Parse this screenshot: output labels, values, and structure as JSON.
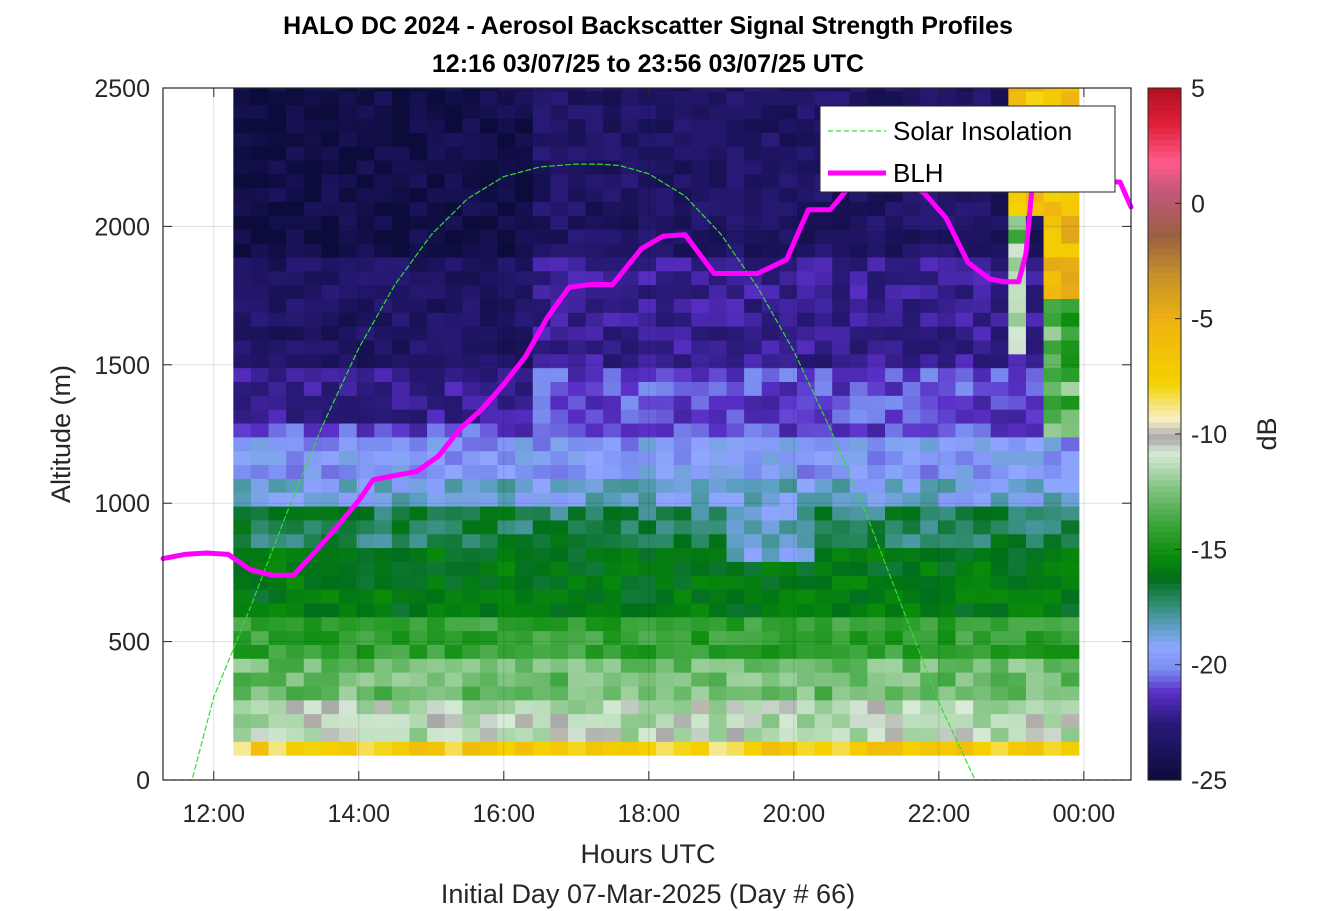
{
  "chart_data": {
    "type": "heatmap",
    "title": "HALO DC 2024 - Aerosol Backscatter Signal Strength Profiles",
    "subtitle": "12:16 03/07/25 to 23:56 03/07/25  UTC",
    "xlabel": "Hours UTC",
    "xlabel2": "Initial Day 07-Mar-2025 (Day # 66)",
    "ylabel": "Altitude (m)",
    "colorbar_label": "dB",
    "xlim": [
      11.3,
      24.65
    ],
    "ylim": [
      0,
      2500
    ],
    "x_ticks": [
      12,
      14,
      16,
      18,
      20,
      22,
      24
    ],
    "x_tick_labels": [
      "12:00",
      "14:00",
      "16:00",
      "18:00",
      "20:00",
      "22:00",
      "00:00"
    ],
    "y_ticks": [
      0,
      500,
      1000,
      1500,
      2000,
      2500
    ],
    "y_tick_labels": [
      "0",
      "500",
      "1000",
      "1500",
      "2000",
      "2500"
    ],
    "clim": [
      -25,
      5
    ],
    "c_ticks": [
      5,
      0,
      -5,
      -10,
      -15,
      -20,
      -25
    ],
    "c_tick_labels": [
      "5",
      "0",
      "-5",
      "-10",
      "-15",
      "-20",
      "-25"
    ],
    "grid": true,
    "legend_position": "top-right",
    "colormap": [
      {
        "v": -25,
        "c": "#0c0c3c"
      },
      {
        "v": -22.5,
        "c": "#2a1a7a"
      },
      {
        "v": -21.2,
        "c": "#5a2fc8"
      },
      {
        "v": -20.2,
        "c": "#7a8ef0"
      },
      {
        "v": -19.3,
        "c": "#8fa6ff"
      },
      {
        "v": -18.3,
        "c": "#5a9ec0"
      },
      {
        "v": -17.3,
        "c": "#2e8a6a"
      },
      {
        "v": -16.3,
        "c": "#006f1a"
      },
      {
        "v": -15.3,
        "c": "#0a8c0a"
      },
      {
        "v": -13.7,
        "c": "#42a842"
      },
      {
        "v": -12.2,
        "c": "#8cc88c"
      },
      {
        "v": -10.8,
        "c": "#d8ead8"
      },
      {
        "v": -10.2,
        "c": "#a8a8a8"
      },
      {
        "v": -9.4,
        "c": "#f6f0c6"
      },
      {
        "v": -7.8,
        "c": "#f4d200"
      },
      {
        "v": -5.2,
        "c": "#f0b410"
      },
      {
        "v": -3.2,
        "c": "#c8922a"
      },
      {
        "v": -1.4,
        "c": "#9a6040"
      },
      {
        "v": 0.4,
        "c": "#c05878"
      },
      {
        "v": 1.8,
        "c": "#ff5a8a"
      },
      {
        "v": 3.4,
        "c": "#e0203a"
      },
      {
        "v": 5,
        "c": "#b01020"
      }
    ],
    "heatmap": {
      "x_start": 12.27,
      "x_end": 23.93,
      "altitude_bottom": 90,
      "bin_size": 50,
      "columns": 48,
      "description_free_note": ""
    },
    "series": [
      {
        "name": "Solar Insolation",
        "color": "#33dd33",
        "style": "dashed",
        "x": [
          11.3,
          11.7,
          12.0,
          12.5,
          13.0,
          13.5,
          14.0,
          14.5,
          15.0,
          15.5,
          16.0,
          16.5,
          17.0,
          17.3,
          17.6,
          18.0,
          18.5,
          19.0,
          19.5,
          20.0,
          20.5,
          21.0,
          21.5,
          22.0,
          22.5,
          23.0,
          23.3,
          24.65
        ],
        "y": [
          0,
          0,
          300,
          620,
          960,
          1280,
          1560,
          1790,
          1970,
          2100,
          2180,
          2215,
          2225,
          2225,
          2220,
          2190,
          2110,
          1970,
          1780,
          1550,
          1270,
          960,
          620,
          280,
          0,
          0,
          0,
          0
        ]
      },
      {
        "name": "BLH",
        "color": "#ff00ff",
        "style": "solid",
        "x": [
          11.3,
          11.6,
          11.9,
          12.2,
          12.5,
          12.8,
          13.1,
          13.4,
          13.7,
          14.0,
          14.2,
          14.5,
          14.8,
          15.1,
          15.4,
          15.7,
          16.0,
          16.3,
          16.6,
          16.9,
          17.2,
          17.5,
          17.9,
          18.2,
          18.5,
          18.9,
          19.2,
          19.5,
          19.9,
          20.2,
          20.5,
          20.9,
          21.2,
          21.5,
          21.8,
          22.1,
          22.4,
          22.7,
          22.9,
          23.1,
          23.2,
          23.3,
          24.5,
          24.65
        ],
        "y": [
          800,
          815,
          820,
          815,
          760,
          740,
          740,
          825,
          915,
          1010,
          1085,
          1100,
          1115,
          1170,
          1270,
          1340,
          1430,
          1530,
          1670,
          1780,
          1790,
          1790,
          1920,
          1965,
          1970,
          1830,
          1830,
          1830,
          1880,
          2060,
          2060,
          2185,
          2190,
          2170,
          2120,
          2030,
          1870,
          1810,
          1800,
          1800,
          1900,
          2180,
          2160,
          2070
        ]
      }
    ]
  }
}
